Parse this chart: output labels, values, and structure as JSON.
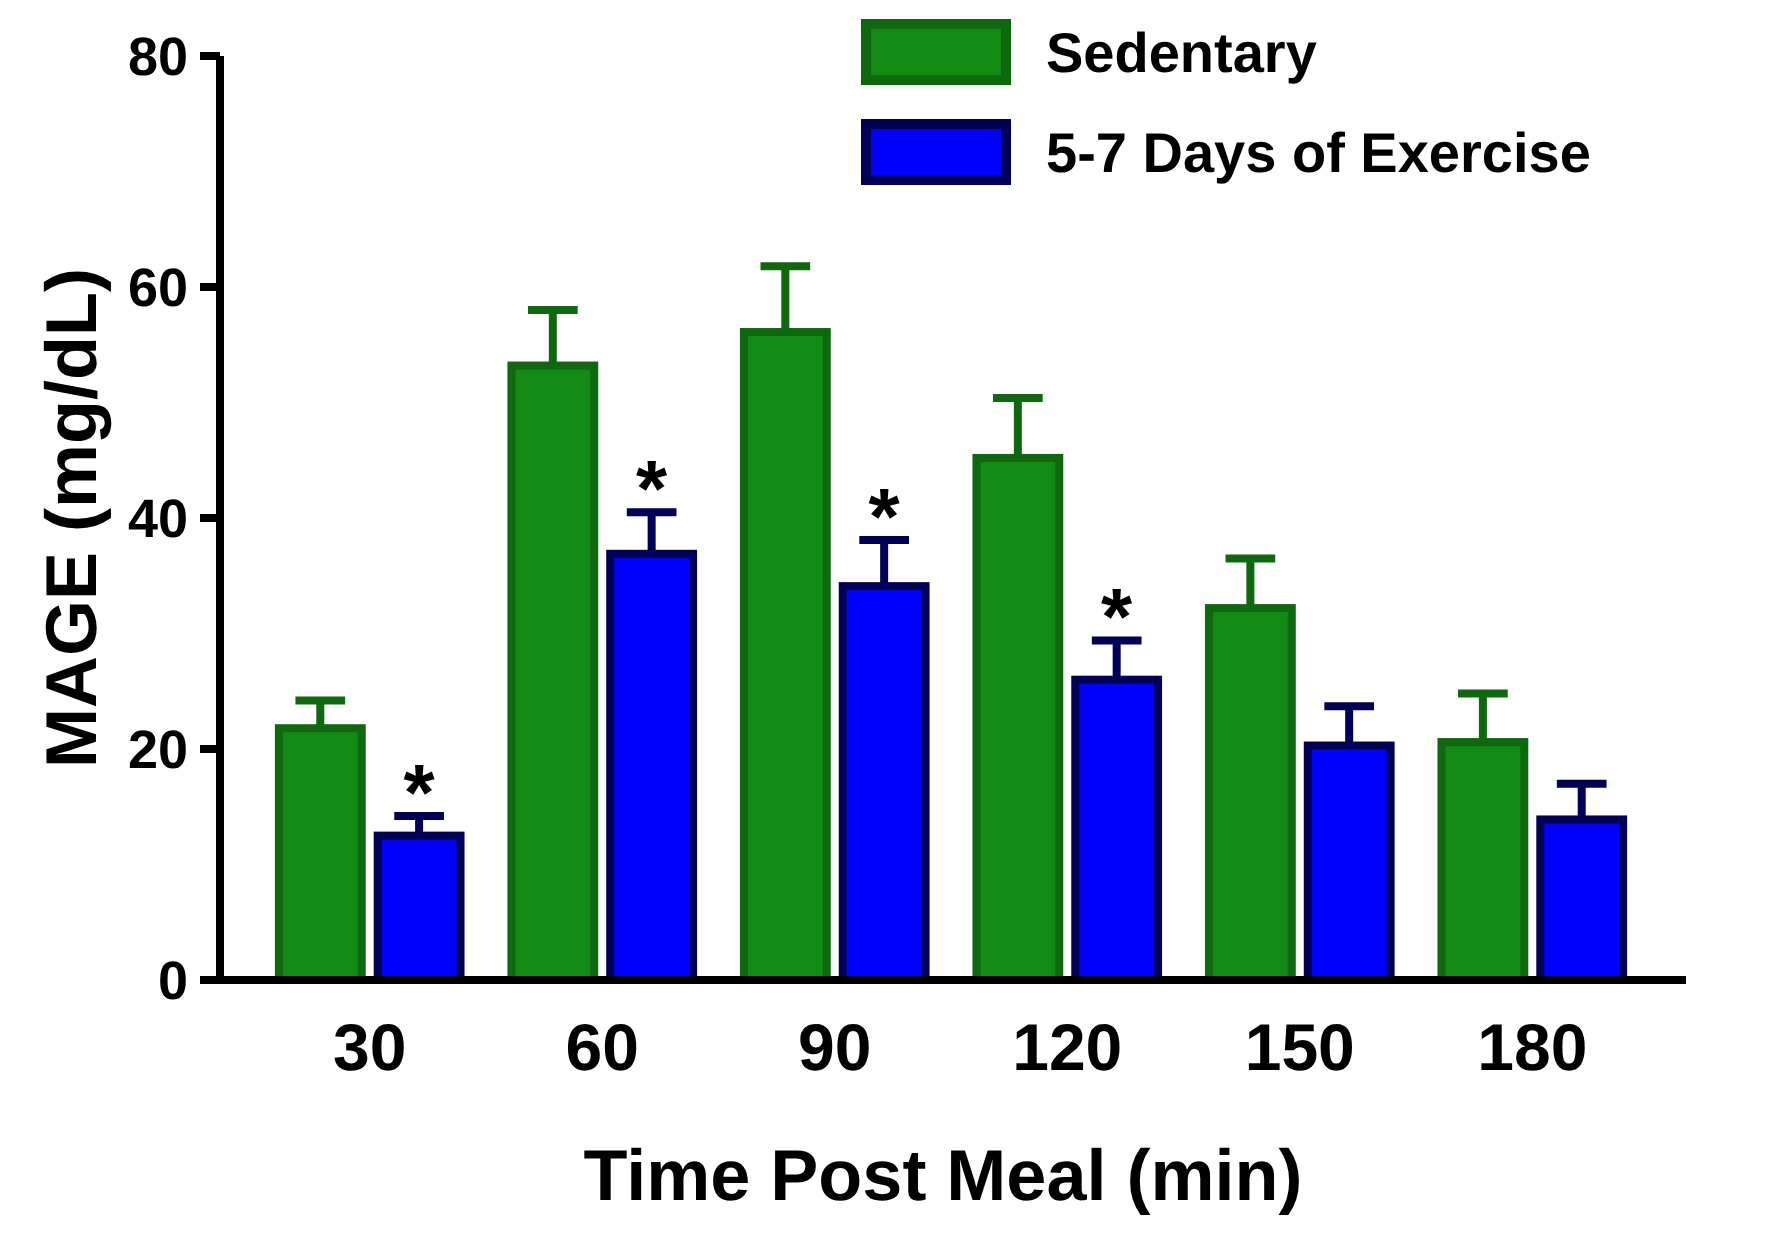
{
  "chart_data": {
    "type": "bar",
    "xlabel": "Time Post Meal (min)",
    "ylabel": "MAGE (mg/dL)",
    "categories": [
      "30",
      "60",
      "90",
      "120",
      "150",
      "180"
    ],
    "series": [
      {
        "name": "Sedentary",
        "color": "#138a13",
        "values": [
          21.8,
          53.2,
          56.1,
          45.2,
          32.2,
          20.6
        ],
        "errors": [
          [
            21.8,
            24.2
          ],
          [
            53.2,
            58.0
          ],
          [
            56.1,
            61.8
          ],
          [
            45.2,
            50.4
          ],
          [
            32.2,
            36.5
          ],
          [
            20.6,
            24.8
          ]
        ]
      },
      {
        "name": "5-7 Days of Exercise",
        "color": "#0000ff",
        "values": [
          12.5,
          36.9,
          34.1,
          26.0,
          20.3,
          13.9
        ],
        "errors": [
          [
            12.5,
            14.2
          ],
          [
            36.9,
            40.5
          ],
          [
            34.1,
            38.1
          ],
          [
            26.0,
            29.4
          ],
          [
            20.3,
            23.7
          ],
          [
            13.9,
            17.0
          ]
        ]
      }
    ],
    "ylim": [
      0,
      80
    ],
    "yticks": [
      0,
      20,
      40,
      60,
      80
    ],
    "legend": "top right",
    "annotations": [
      "*",
      "*",
      "*",
      "*"
    ]
  }
}
